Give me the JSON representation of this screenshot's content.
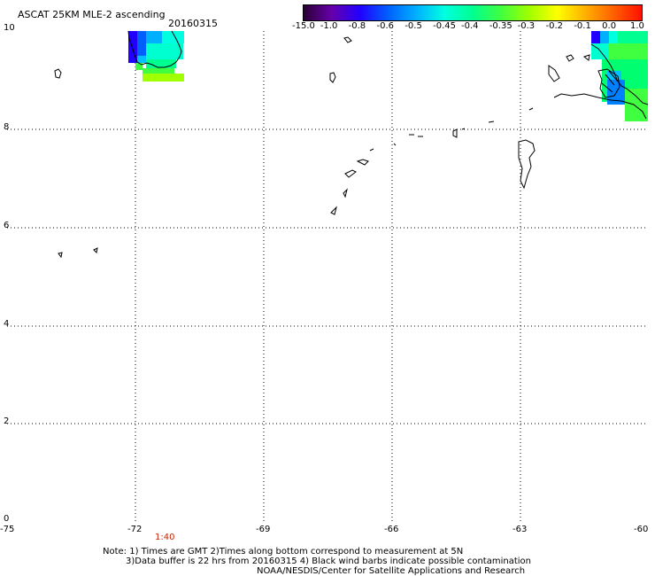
{
  "title_line1": "ASCAT 25KM MLE-2 ascending",
  "title_date": "20160315",
  "colorbar": {
    "labels": [
      "-15.0",
      "-1.0",
      "-0.8",
      "-0.6",
      "-0.5",
      "-0.45",
      "-0.4",
      "-0.35",
      "-0.3",
      "-0.2",
      "-0.1",
      "0.0",
      "1.0"
    ],
    "colors": [
      "#2a0033",
      "#6600aa",
      "#2200ff",
      "#0060ff",
      "#00b0ff",
      "#00ffe0",
      "#00ff90",
      "#40ff40",
      "#a0ff00",
      "#ffff00",
      "#ffb000",
      "#ff6000",
      "#ff1000"
    ]
  },
  "axes": {
    "lat_labels": [
      "10",
      "8",
      "6",
      "4",
      "2",
      "0"
    ],
    "lon_labels": [
      "-75",
      "-72",
      "-69",
      "-66",
      "-63",
      "-60"
    ]
  },
  "time_labels": [
    "1:40"
  ],
  "notes": [
    "Note: 1) Times are GMT 2)Times along bottom correspond to measurement at 5N",
    "3)Data buffer is 22 hrs from 20160315 4) Black wind barbs indicate possible contamination",
    "NOAA/NESDIS/Center for Satellite Applications and Research"
  ]
}
